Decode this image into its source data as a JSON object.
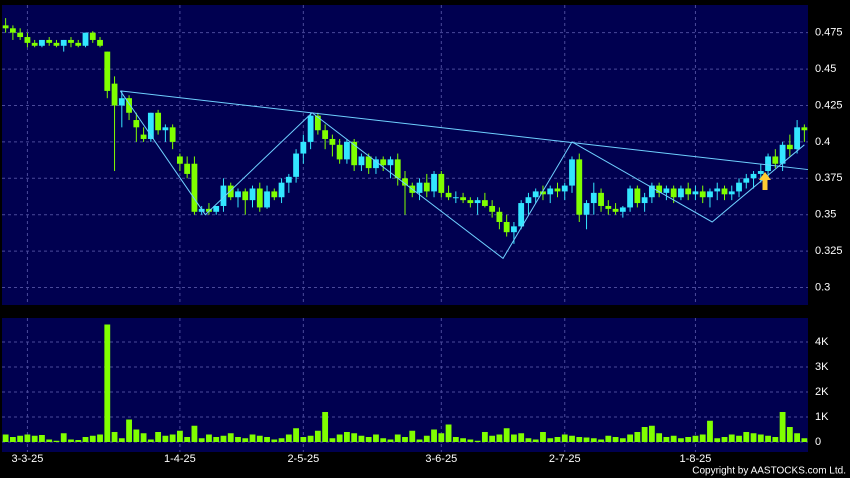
{
  "chart_data": {
    "type": "candlestick",
    "categories": [
      null,
      null,
      null,
      "3-3-25",
      null,
      null,
      null,
      null,
      null,
      null,
      null,
      null,
      null,
      null,
      null,
      null,
      null,
      null,
      null,
      null,
      null,
      null,
      null,
      null,
      "1-4-25",
      null,
      null,
      null,
      null,
      null,
      null,
      null,
      null,
      null,
      null,
      null,
      null,
      null,
      null,
      null,
      null,
      "2-5-25",
      null,
      null,
      null,
      null,
      null,
      null,
      null,
      null,
      null,
      null,
      null,
      null,
      null,
      null,
      null,
      null,
      null,
      null,
      "3-6-25",
      null,
      null,
      null,
      null,
      null,
      null,
      null,
      null,
      null,
      null,
      null,
      null,
      null,
      null,
      null,
      null,
      "2-7-25",
      null,
      null,
      null,
      null,
      null,
      null,
      null,
      null,
      null,
      null,
      null,
      null,
      null,
      null,
      null,
      null,
      null,
      "1-8-25",
      null,
      null,
      null,
      null,
      null,
      null,
      null,
      null,
      null,
      null,
      null,
      null,
      null,
      null,
      null
    ],
    "open": [
      0.48,
      0.478,
      0.475,
      0.472,
      0.468,
      0.466,
      0.47,
      0.468,
      0.466,
      0.47,
      0.468,
      0.466,
      0.475,
      0.47,
      0.462,
      0.44,
      0.425,
      0.43,
      0.415,
      0.405,
      0.402,
      0.42,
      0.408,
      0.41,
      0.39,
      0.385,
      0.385,
      0.352,
      0.354,
      0.352,
      0.356,
      0.37,
      0.362,
      0.366,
      0.36,
      0.368,
      0.355,
      0.366,
      0.362,
      0.372,
      0.376,
      0.392,
      0.4,
      0.418,
      0.408,
      0.402,
      0.398,
      0.388,
      0.4,
      0.384,
      0.39,
      0.382,
      0.388,
      0.384,
      0.388,
      0.375,
      0.37,
      0.365,
      0.372,
      0.366,
      0.378,
      0.365,
      0.362,
      0.362,
      0.36,
      0.358,
      0.36,
      0.356,
      0.352,
      0.345,
      0.338,
      0.342,
      0.358,
      0.362,
      0.366,
      0.364,
      0.368,
      0.366,
      0.37,
      0.388,
      0.35,
      0.358,
      0.365,
      0.356,
      0.354,
      0.352,
      0.355,
      0.368,
      0.358,
      0.362,
      0.37,
      0.365,
      0.368,
      0.362,
      0.368,
      0.364,
      0.366,
      0.362,
      0.366,
      0.368,
      0.364,
      0.366,
      0.372,
      0.375,
      0.378,
      0.38,
      0.39,
      0.385,
      0.398,
      0.395,
      0.41
    ],
    "high": [
      0.485,
      0.48,
      0.478,
      0.475,
      0.47,
      0.47,
      0.472,
      0.47,
      0.47,
      0.472,
      0.47,
      0.475,
      0.476,
      0.472,
      0.462,
      0.445,
      0.435,
      0.432,
      0.42,
      0.41,
      0.42,
      0.422,
      0.412,
      0.412,
      0.392,
      0.39,
      0.39,
      0.356,
      0.358,
      0.356,
      0.375,
      0.372,
      0.368,
      0.368,
      0.37,
      0.372,
      0.37,
      0.368,
      0.375,
      0.378,
      0.395,
      0.405,
      0.42,
      0.42,
      0.412,
      0.405,
      0.402,
      0.402,
      0.402,
      0.392,
      0.392,
      0.39,
      0.39,
      0.39,
      0.392,
      0.38,
      0.372,
      0.375,
      0.378,
      0.38,
      0.38,
      0.37,
      0.366,
      0.365,
      0.362,
      0.362,
      0.365,
      0.36,
      0.355,
      0.35,
      0.345,
      0.36,
      0.365,
      0.368,
      0.37,
      0.37,
      0.372,
      0.372,
      0.39,
      0.392,
      0.36,
      0.372,
      0.368,
      0.36,
      0.358,
      0.356,
      0.37,
      0.37,
      0.365,
      0.372,
      0.372,
      0.37,
      0.37,
      0.37,
      0.372,
      0.37,
      0.37,
      0.368,
      0.372,
      0.37,
      0.37,
      0.375,
      0.378,
      0.38,
      0.385,
      0.392,
      0.395,
      0.4,
      0.405,
      0.415,
      0.412
    ],
    "low": [
      0.475,
      0.47,
      0.47,
      0.465,
      0.465,
      0.465,
      0.466,
      0.465,
      0.462,
      0.465,
      0.465,
      0.465,
      0.468,
      0.465,
      0.43,
      0.38,
      0.41,
      0.415,
      0.4,
      0.4,
      0.4,
      0.405,
      0.4,
      0.395,
      0.38,
      0.375,
      0.35,
      0.35,
      0.35,
      0.35,
      0.352,
      0.36,
      0.355,
      0.35,
      0.355,
      0.352,
      0.354,
      0.36,
      0.358,
      0.365,
      0.372,
      0.385,
      0.395,
      0.405,
      0.395,
      0.39,
      0.385,
      0.385,
      0.38,
      0.38,
      0.378,
      0.378,
      0.38,
      0.375,
      0.37,
      0.35,
      0.362,
      0.36,
      0.362,
      0.362,
      0.362,
      0.36,
      0.358,
      0.358,
      0.355,
      0.35,
      0.355,
      0.348,
      0.34,
      0.335,
      0.33,
      0.34,
      0.35,
      0.358,
      0.36,
      0.358,
      0.362,
      0.36,
      0.365,
      0.345,
      0.34,
      0.35,
      0.352,
      0.35,
      0.35,
      0.348,
      0.352,
      0.355,
      0.352,
      0.358,
      0.362,
      0.36,
      0.358,
      0.36,
      0.36,
      0.36,
      0.358,
      0.355,
      0.36,
      0.36,
      0.36,
      0.362,
      0.368,
      0.368,
      0.372,
      0.375,
      0.382,
      0.38,
      0.39,
      0.392,
      0.4
    ],
    "close": [
      0.478,
      0.475,
      0.472,
      0.468,
      0.466,
      0.47,
      0.468,
      0.466,
      0.47,
      0.468,
      0.466,
      0.475,
      0.47,
      0.466,
      0.435,
      0.425,
      0.43,
      0.42,
      0.41,
      0.402,
      0.42,
      0.408,
      0.41,
      0.4,
      0.385,
      0.378,
      0.352,
      0.354,
      0.352,
      0.356,
      0.37,
      0.362,
      0.366,
      0.36,
      0.368,
      0.355,
      0.366,
      0.362,
      0.372,
      0.376,
      0.392,
      0.4,
      0.418,
      0.408,
      0.402,
      0.398,
      0.388,
      0.4,
      0.384,
      0.39,
      0.382,
      0.388,
      0.384,
      0.388,
      0.375,
      0.37,
      0.365,
      0.372,
      0.366,
      0.378,
      0.365,
      0.362,
      0.362,
      0.36,
      0.358,
      0.36,
      0.356,
      0.352,
      0.345,
      0.338,
      0.342,
      0.358,
      0.362,
      0.366,
      0.364,
      0.368,
      0.366,
      0.37,
      0.388,
      0.35,
      0.358,
      0.365,
      0.356,
      0.354,
      0.352,
      0.355,
      0.368,
      0.358,
      0.362,
      0.37,
      0.365,
      0.368,
      0.362,
      0.368,
      0.364,
      0.366,
      0.362,
      0.366,
      0.368,
      0.364,
      0.366,
      0.372,
      0.375,
      0.378,
      0.38,
      0.39,
      0.385,
      0.398,
      0.395,
      0.41,
      0.408
    ],
    "up_color": "#33e6ff",
    "down_color": "#80ff00",
    "ylim": [
      0.288,
      0.494
    ],
    "yticks": [
      0.3,
      0.325,
      0.35,
      0.375,
      0.4,
      0.425,
      0.45,
      0.475
    ],
    "grid": true,
    "lines": [
      {
        "color": "#6fd0ff",
        "x": [
          15.8,
          110.5
        ],
        "values": [
          0.435,
          0.381
        ]
      },
      {
        "color": "#6fd0ff",
        "x": [
          15.8,
          27.5,
          42.2,
          68.5,
          78,
          97.3,
          110
        ],
        "values": [
          0.435,
          0.35,
          0.42,
          0.32,
          0.4,
          0.345,
          0.398
        ]
      }
    ],
    "volume": {
      "type": "bar",
      "color": "#80ff00",
      "values": [
        300,
        200,
        250,
        300,
        250,
        280,
        100,
        50,
        350,
        100,
        80,
        200,
        250,
        300,
        4700,
        400,
        150,
        900,
        500,
        350,
        100,
        400,
        250,
        300,
        450,
        200,
        650,
        150,
        300,
        200,
        250,
        350,
        200,
        150,
        300,
        250,
        200,
        100,
        150,
        300,
        550,
        200,
        250,
        450,
        1200,
        150,
        300,
        400,
        350,
        250,
        200,
        300,
        150,
        100,
        300,
        200,
        450,
        100,
        250,
        500,
        350,
        700,
        200,
        150,
        100,
        50,
        400,
        250,
        300,
        550,
        300,
        350,
        150,
        100,
        400,
        150,
        200,
        300,
        250,
        200,
        180,
        150,
        100,
        250,
        200,
        150,
        300,
        400,
        600,
        650,
        350,
        200,
        250,
        150,
        200,
        250,
        300,
        850,
        150,
        200,
        300,
        250,
        400,
        350,
        300,
        250,
        200,
        1200,
        600,
        350,
        150
      ],
      "ylim": [
        -400,
        4960
      ],
      "yticks": [
        0,
        {
          "value": 1000,
          "label": "1K"
        },
        {
          "value": 2000,
          "label": "2K"
        },
        {
          "value": 3000,
          "label": "3K"
        },
        {
          "value": 4000,
          "label": "4K"
        }
      ]
    },
    "copyright": "Copyright by AASTOCKS.com Ltd."
  }
}
